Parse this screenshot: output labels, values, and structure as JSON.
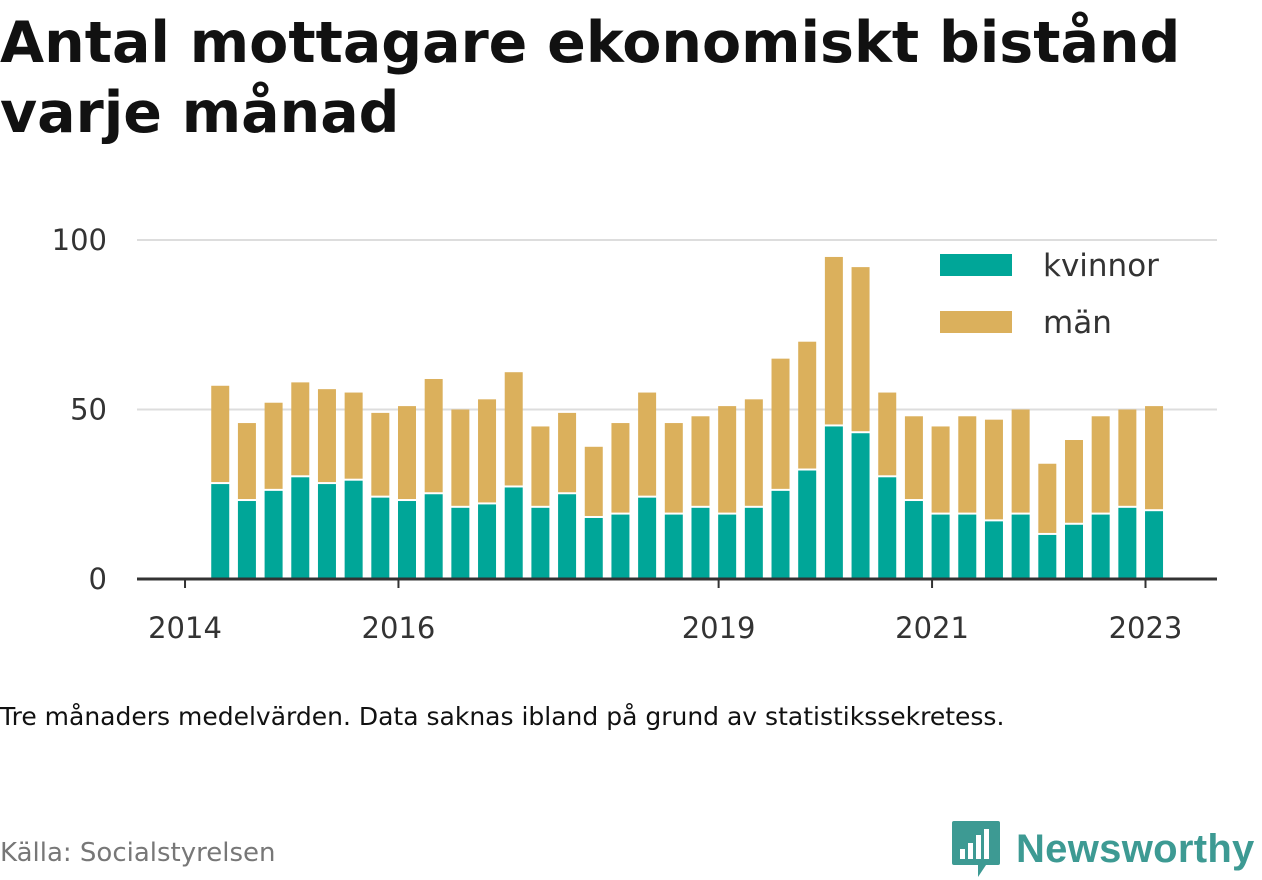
{
  "title": "Antal mottagare ekonomiskt bistånd varje månad",
  "note": "Tre månaders medelvärden. Data saknas ibland på grund av statistikssekretess.",
  "source": "Källa: Socialstyrelsen",
  "brand": {
    "name": "Newsworthy",
    "icon": "bar-chart-speech-bubble-icon"
  },
  "colors": {
    "kvinnor": "#00a698",
    "man": "#dbb05c",
    "grid": "#dddddd",
    "axis": "#333333"
  },
  "chart_data": {
    "type": "bar",
    "stacked": true,
    "ylim": [
      0,
      100
    ],
    "yticks": [
      {
        "value": 0,
        "label": "0"
      },
      {
        "value": 50,
        "label": "50"
      },
      {
        "value": 100,
        "label": "100"
      }
    ],
    "xticks": [
      {
        "value": 2014.0,
        "label": "2014"
      },
      {
        "value": 2016.0,
        "label": "2016"
      },
      {
        "value": 2019.0,
        "label": "2019"
      },
      {
        "value": 2021.0,
        "label": "2021"
      },
      {
        "value": 2023.0,
        "label": "2023"
      }
    ],
    "xrange": [
      2013.55,
      2023.67
    ],
    "legend": {
      "position": "top-right",
      "entries": [
        {
          "key": "kvinnor",
          "label": "kvinnor"
        },
        {
          "key": "man",
          "label": "män"
        }
      ]
    },
    "x": [
      2014.33,
      2014.58,
      2014.83,
      2015.08,
      2015.33,
      2015.58,
      2015.83,
      2016.08,
      2016.33,
      2016.58,
      2016.83,
      2017.08,
      2017.33,
      2017.58,
      2017.83,
      2018.08,
      2018.33,
      2018.58,
      2018.83,
      2019.08,
      2019.33,
      2019.58,
      2019.83,
      2020.08,
      2020.33,
      2020.58,
      2020.83,
      2021.08,
      2021.33,
      2021.58,
      2021.83,
      2022.08,
      2022.33,
      2022.58,
      2022.83,
      2023.08
    ],
    "series": [
      {
        "name": "kvinnor",
        "values": [
          28,
          23,
          26,
          30,
          28,
          29,
          24,
          23,
          25,
          21,
          22,
          27,
          21,
          25,
          18,
          19,
          24,
          19,
          21,
          19,
          21,
          26,
          32,
          45,
          43,
          30,
          23,
          19,
          19,
          17,
          19,
          13,
          16,
          19,
          21,
          20
        ]
      },
      {
        "name": "män",
        "values": [
          29,
          23,
          26,
          28,
          28,
          26,
          25,
          28,
          34,
          29,
          31,
          34,
          24,
          24,
          21,
          27,
          31,
          27,
          27,
          32,
          32,
          39,
          38,
          50,
          49,
          25,
          25,
          26,
          29,
          30,
          31,
          21,
          25,
          29,
          29,
          31
        ]
      }
    ]
  }
}
